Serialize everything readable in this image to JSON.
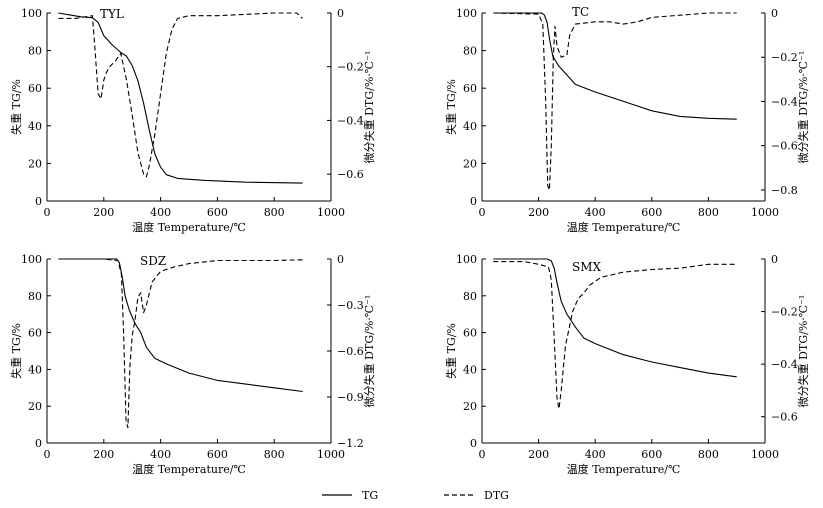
{
  "legend": {
    "tg_label": "TG",
    "dtg_label": "DTG"
  },
  "chart_data": [
    {
      "type": "line",
      "title": "TYL",
      "xlabel": "温度 Temperature/℃",
      "ylabel": "失重 TG/%",
      "y2label": "微分失重 DTG/%·℃⁻¹",
      "xlim": [
        0,
        1000
      ],
      "ylim": [
        0,
        100
      ],
      "y2lim": [
        -0.7,
        0
      ],
      "xticks": [
        "0",
        "200",
        "400",
        "600",
        "800",
        "1000"
      ],
      "yticks": [
        "0",
        "20",
        "40",
        "60",
        "80",
        "100"
      ],
      "y2ticks": [
        "0",
        "-0.2",
        "-0.4",
        "-0.6"
      ],
      "series": [
        {
          "name": "TG",
          "axis": "left",
          "style": "solid",
          "points": [
            [
              40,
              100
            ],
            [
              80,
              99
            ],
            [
              120,
              98
            ],
            [
              160,
              97.5
            ],
            [
              180,
              95
            ],
            [
              200,
              88
            ],
            [
              230,
              83
            ],
            [
              260,
              79
            ],
            [
              280,
              77
            ],
            [
              300,
              72
            ],
            [
              320,
              64
            ],
            [
              340,
              52
            ],
            [
              360,
              38
            ],
            [
              380,
              25
            ],
            [
              400,
              18
            ],
            [
              420,
              14
            ],
            [
              460,
              12
            ],
            [
              550,
              11
            ],
            [
              700,
              10
            ],
            [
              900,
              9.5
            ]
          ]
        },
        {
          "name": "DTG",
          "axis": "right",
          "style": "dashed",
          "points": [
            [
              40,
              -0.02
            ],
            [
              100,
              -0.02
            ],
            [
              160,
              -0.01
            ],
            [
              170,
              -0.15
            ],
            [
              180,
              -0.3
            ],
            [
              190,
              -0.32
            ],
            [
              200,
              -0.25
            ],
            [
              210,
              -0.22
            ],
            [
              220,
              -0.2
            ],
            [
              240,
              -0.18
            ],
            [
              260,
              -0.15
            ],
            [
              280,
              -0.25
            ],
            [
              300,
              -0.38
            ],
            [
              320,
              -0.52
            ],
            [
              340,
              -0.6
            ],
            [
              350,
              -0.61
            ],
            [
              360,
              -0.57
            ],
            [
              380,
              -0.45
            ],
            [
              400,
              -0.3
            ],
            [
              420,
              -0.15
            ],
            [
              440,
              -0.06
            ],
            [
              460,
              -0.02
            ],
            [
              500,
              -0.01
            ],
            [
              600,
              -0.01
            ],
            [
              800,
              0
            ],
            [
              880,
              0
            ],
            [
              900,
              -0.02
            ]
          ]
        }
      ]
    },
    {
      "type": "line",
      "title": "TC",
      "xlabel": "温度 Temperature/℃",
      "ylabel": "失重 TG/%",
      "y2label": "微分失重 DTG/%·℃⁻¹",
      "xlim": [
        0,
        1000
      ],
      "ylim": [
        0,
        100
      ],
      "y2lim": [
        -0.85,
        0
      ],
      "xticks": [
        "0",
        "200",
        "400",
        "600",
        "800",
        "1000"
      ],
      "yticks": [
        "0",
        "20",
        "40",
        "60",
        "80",
        "100"
      ],
      "y2ticks": [
        "0",
        "-0.2",
        "-0.4",
        "-0.6",
        "-0.8"
      ],
      "series": [
        {
          "name": "TG",
          "axis": "left",
          "style": "solid",
          "points": [
            [
              40,
              100
            ],
            [
              150,
              100
            ],
            [
              210,
              100
            ],
            [
              220,
              99
            ],
            [
              230,
              95
            ],
            [
              240,
              85
            ],
            [
              250,
              77
            ],
            [
              270,
              72
            ],
            [
              300,
              67
            ],
            [
              330,
              62
            ],
            [
              400,
              58
            ],
            [
              500,
              53
            ],
            [
              600,
              48
            ],
            [
              700,
              45
            ],
            [
              800,
              44
            ],
            [
              900,
              43.5
            ]
          ]
        },
        {
          "name": "DTG",
          "axis": "right",
          "style": "dashed",
          "points": [
            [
              40,
              0
            ],
            [
              200,
              -0.005
            ],
            [
              215,
              -0.05
            ],
            [
              225,
              -0.4
            ],
            [
              232,
              -0.78
            ],
            [
              238,
              -0.8
            ],
            [
              245,
              -0.6
            ],
            [
              252,
              -0.2
            ],
            [
              258,
              -0.06
            ],
            [
              265,
              -0.15
            ],
            [
              280,
              -0.2
            ],
            [
              300,
              -0.19
            ],
            [
              310,
              -0.1
            ],
            [
              330,
              -0.05
            ],
            [
              400,
              -0.04
            ],
            [
              450,
              -0.04
            ],
            [
              500,
              -0.05
            ],
            [
              550,
              -0.04
            ],
            [
              600,
              -0.02
            ],
            [
              700,
              -0.01
            ],
            [
              800,
              0
            ],
            [
              900,
              0
            ]
          ]
        }
      ]
    },
    {
      "type": "line",
      "title": "SDZ",
      "xlabel": "温度 Temperature/℃",
      "ylabel": "失重 TG/%",
      "y2label": "微分失重 DTG/%·℃⁻¹",
      "xlim": [
        0,
        1000
      ],
      "ylim": [
        0,
        100
      ],
      "y2lim": [
        -1.2,
        0
      ],
      "xticks": [
        "0",
        "200",
        "400",
        "600",
        "800",
        "1000"
      ],
      "yticks": [
        "0",
        "20",
        "40",
        "60",
        "80",
        "100"
      ],
      "y2ticks": [
        "0",
        "-0.3",
        "-0.6",
        "-0.9",
        "-1.2"
      ],
      "series": [
        {
          "name": "TG",
          "axis": "left",
          "style": "solid",
          "points": [
            [
              40,
              100
            ],
            [
              150,
              100
            ],
            [
              245,
              100
            ],
            [
              255,
              98
            ],
            [
              265,
              90
            ],
            [
              275,
              80
            ],
            [
              290,
              72
            ],
            [
              310,
              65
            ],
            [
              330,
              60
            ],
            [
              350,
              52
            ],
            [
              380,
              46
            ],
            [
              420,
              43
            ],
            [
              500,
              38
            ],
            [
              600,
              34
            ],
            [
              700,
              32
            ],
            [
              800,
              30
            ],
            [
              900,
              28
            ]
          ]
        },
        {
          "name": "DTG",
          "axis": "right",
          "style": "dashed",
          "points": [
            [
              40,
              0
            ],
            [
              200,
              0
            ],
            [
              250,
              -0.01
            ],
            [
              262,
              -0.1
            ],
            [
              270,
              -0.5
            ],
            [
              278,
              -1.05
            ],
            [
              285,
              -1.1
            ],
            [
              292,
              -0.7
            ],
            [
              300,
              -0.5
            ],
            [
              310,
              -0.4
            ],
            [
              320,
              -0.25
            ],
            [
              330,
              -0.22
            ],
            [
              340,
              -0.35
            ],
            [
              350,
              -0.3
            ],
            [
              370,
              -0.15
            ],
            [
              400,
              -0.08
            ],
            [
              450,
              -0.05
            ],
            [
              500,
              -0.03
            ],
            [
              600,
              -0.01
            ],
            [
              800,
              -0.01
            ],
            [
              900,
              -0.005
            ]
          ]
        }
      ]
    },
    {
      "type": "line",
      "title": "SMX",
      "xlabel": "温度 Temperature/℃",
      "ylabel": "失重 TG/%",
      "y2label": "微分失重 DTG/%·℃⁻¹",
      "xlim": [
        0,
        1000
      ],
      "ylim": [
        0,
        100
      ],
      "y2lim": [
        -0.7,
        0
      ],
      "xticks": [
        "0",
        "200",
        "400",
        "600",
        "800",
        "1000"
      ],
      "yticks": [
        "0",
        "20",
        "40",
        "60",
        "80",
        "100"
      ],
      "y2ticks": [
        "0",
        "-0.2",
        "-0.4",
        "-0.6"
      ],
      "series": [
        {
          "name": "TG",
          "axis": "left",
          "style": "solid",
          "points": [
            [
              40,
              100
            ],
            [
              150,
              100
            ],
            [
              230,
              100
            ],
            [
              245,
              99
            ],
            [
              255,
              95
            ],
            [
              265,
              87
            ],
            [
              280,
              77
            ],
            [
              300,
              70
            ],
            [
              330,
              63
            ],
            [
              360,
              57
            ],
            [
              400,
              54
            ],
            [
              450,
              51
            ],
            [
              500,
              48
            ],
            [
              600,
              44
            ],
            [
              700,
              41
            ],
            [
              800,
              38
            ],
            [
              900,
              36
            ]
          ]
        },
        {
          "name": "DTG",
          "axis": "right",
          "style": "dashed",
          "points": [
            [
              40,
              -0.01
            ],
            [
              150,
              -0.01
            ],
            [
              200,
              -0.02
            ],
            [
              235,
              -0.03
            ],
            [
              245,
              -0.08
            ],
            [
              255,
              -0.3
            ],
            [
              265,
              -0.53
            ],
            [
              272,
              -0.57
            ],
            [
              280,
              -0.5
            ],
            [
              295,
              -0.33
            ],
            [
              320,
              -0.2
            ],
            [
              340,
              -0.15
            ],
            [
              360,
              -0.13
            ],
            [
              380,
              -0.1
            ],
            [
              420,
              -0.07
            ],
            [
              500,
              -0.05
            ],
            [
              600,
              -0.04
            ],
            [
              700,
              -0.035
            ],
            [
              800,
              -0.02
            ],
            [
              900,
              -0.02
            ]
          ]
        }
      ]
    }
  ]
}
